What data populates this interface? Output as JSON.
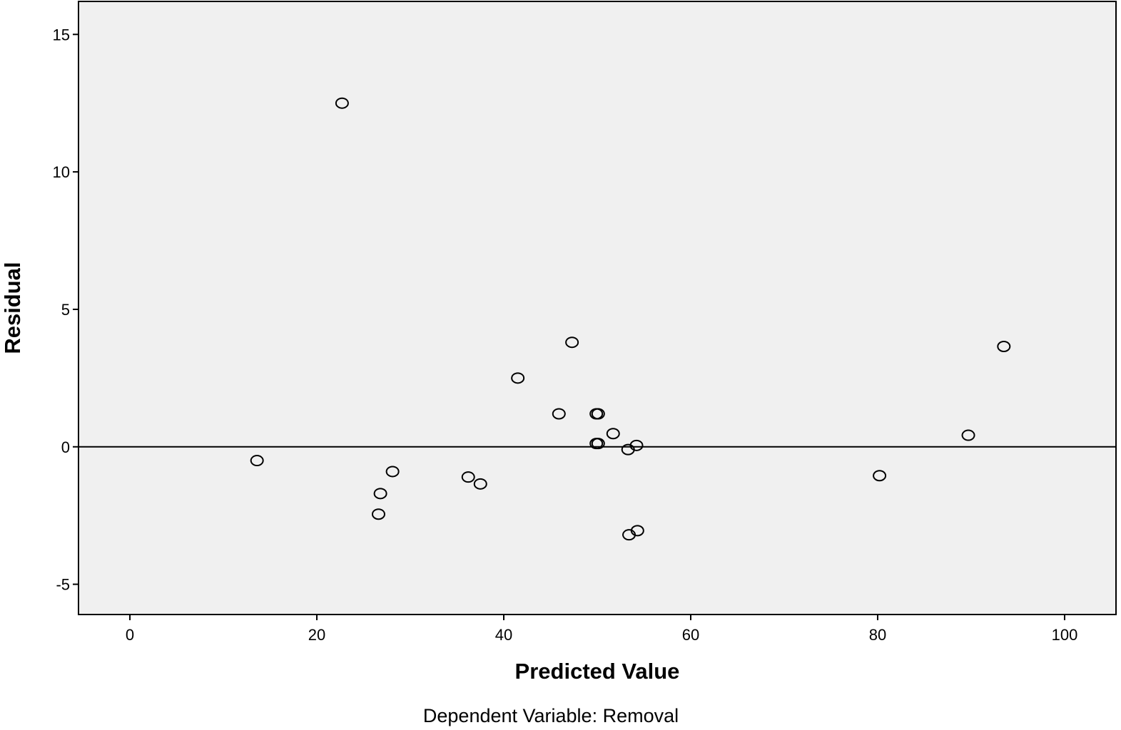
{
  "chart_data": {
    "type": "scatter",
    "xlabel": "Predicted Value",
    "ylabel": "Residual",
    "footnote": "Dependent Variable: Removal",
    "xlim": [
      -5.5,
      105.5
    ],
    "ylim": [
      -6.1,
      16.2
    ],
    "x_ticks": [
      0,
      20,
      40,
      60,
      80,
      100
    ],
    "y_ticks": [
      -5,
      0,
      5,
      10,
      15
    ],
    "reference_line_y": 0,
    "grid": false,
    "legend": "none",
    "colors": {
      "plot_background": "#f0f0f0",
      "marker_edge": "#000000",
      "line": "#000000"
    },
    "points": [
      {
        "x": 13.6,
        "y": -0.5
      },
      {
        "x": 22.7,
        "y": 12.5
      },
      {
        "x": 26.6,
        "y": -2.45
      },
      {
        "x": 26.8,
        "y": -1.7
      },
      {
        "x": 28.1,
        "y": -0.9
      },
      {
        "x": 36.2,
        "y": -1.1
      },
      {
        "x": 37.5,
        "y": -1.35
      },
      {
        "x": 41.5,
        "y": 2.5
      },
      {
        "x": 45.9,
        "y": 1.2
      },
      {
        "x": 47.3,
        "y": 3.8
      },
      {
        "x": 49.9,
        "y": 1.2
      },
      {
        "x": 50.1,
        "y": 1.2
      },
      {
        "x": 49.9,
        "y": 0.12
      },
      {
        "x": 50.1,
        "y": 0.12
      },
      {
        "x": 51.7,
        "y": 0.48
      },
      {
        "x": 53.3,
        "y": -0.1
      },
      {
        "x": 54.2,
        "y": 0.05
      },
      {
        "x": 53.4,
        "y": -3.2
      },
      {
        "x": 54.3,
        "y": -3.05
      },
      {
        "x": 80.2,
        "y": -1.05
      },
      {
        "x": 89.7,
        "y": 0.42
      },
      {
        "x": 93.5,
        "y": 3.65
      }
    ]
  }
}
